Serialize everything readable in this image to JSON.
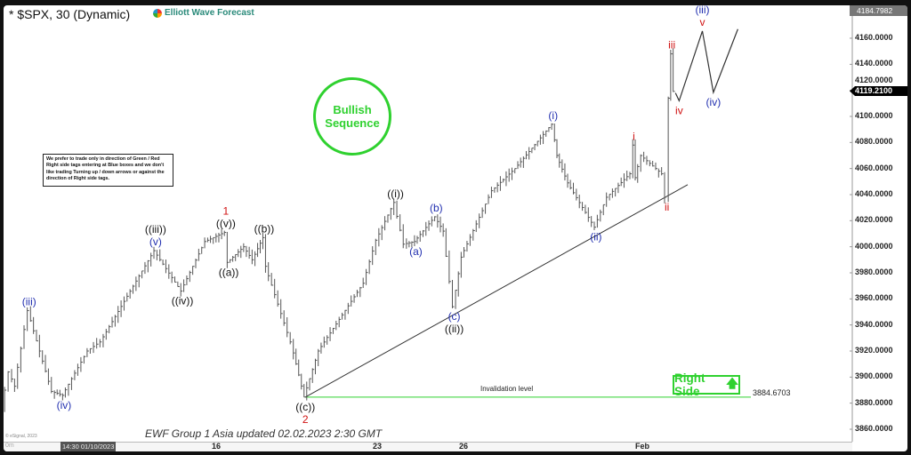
{
  "header": {
    "title": "* $SPX, 30 (Dynamic)",
    "logo_text": "Elliott Wave Forecast"
  },
  "note": "We prefer to trade only in direction of Green / Red Right side tags entering at Blue boxes and we don't like trading Turning up / down arrows or against the direction of Right side tags.",
  "badge": {
    "line1": "Bullish",
    "line2": "Sequence",
    "color": "#2fd12f"
  },
  "right_side": {
    "label": "Right Side",
    "arrow": "arrow-up"
  },
  "footer": "EWF Group 1 Asia updated 02.02.2023 2:30 GMT",
  "copyright": "© eSignal, 2023",
  "interval_label": "0m",
  "chart_data": {
    "type": "ohlc",
    "title": "* $SPX, 30 (Dynamic)",
    "ylim": [
      3850,
      4184.7982
    ],
    "y_ticks": [
      "4160.0000",
      "4140.0000",
      "4120.0000",
      "4100.0000",
      "4080.0000",
      "4060.0000",
      "4040.0000",
      "4020.0000",
      "4000.0000",
      "3980.0000",
      "3960.0000",
      "3940.0000",
      "3920.0000",
      "3900.0000",
      "3880.0000",
      "3860.0000"
    ],
    "y_tick_values": [
      4160,
      4140,
      4120,
      4100,
      4080,
      4060,
      4040,
      4020,
      4000,
      3980,
      3960,
      3940,
      3920,
      3900,
      3880,
      3860
    ],
    "x_ticks": [
      "16",
      "23",
      "26",
      "Feb"
    ],
    "x_tick_dates": [
      "01/16 00:00",
      "01/23 00:00",
      "01/26 00:00",
      "02/01 00:00"
    ],
    "cursor_time": "14:30 01/10/2023",
    "last_price": "4119.2100",
    "top_price": "4184.7982",
    "price_swings": [
      [
        "01/07 03:00",
        3876
      ],
      [
        "01/07 10:00",
        3904
      ],
      [
        "01/07 16:00",
        3893
      ],
      [
        "01/08 05:00",
        3951
      ],
      [
        "01/09 05:00",
        3889
      ],
      [
        "01/09 16:00",
        3886
      ],
      [
        "01/10 17:00",
        3920
      ],
      [
        "01/11 06:00",
        3927
      ],
      [
        "01/13 12:00",
        3997
      ],
      [
        "01/14 15:00",
        3966
      ],
      [
        "01/15 15:00",
        4004
      ],
      [
        "01/16 11:00",
        4011
      ],
      [
        "01/16 14:00",
        3988
      ],
      [
        "01/17 07:00",
        4000
      ],
      [
        "01/17 16:00",
        3990
      ],
      [
        "01/18 03:00",
        4007
      ],
      [
        "01/18 06:00",
        3985
      ],
      [
        "01/19 08:00",
        3927
      ],
      [
        "01/19 22:00",
        3884.67
      ],
      [
        "01/20 13:00",
        3920
      ],
      [
        "01/22 12:00",
        3972
      ],
      [
        "01/23 01:00",
        4005
      ],
      [
        "01/23 16:00",
        4034
      ],
      [
        "01/24 00:00",
        4002
      ],
      [
        "01/24 09:00",
        4004
      ],
      [
        "01/25 02:00",
        4023
      ],
      [
        "01/25 09:00",
        4012
      ],
      [
        "01/25 17:00",
        3954
      ],
      [
        "01/26 00:00",
        3992
      ],
      [
        "01/27 01:00",
        4043
      ],
      [
        "01/27 20:00",
        4060
      ],
      [
        "01/29 02:00",
        4094
      ],
      [
        "01/29 06:00",
        4070
      ],
      [
        "01/29 15:00",
        4049
      ],
      [
        "01/30 13:00",
        4015
      ],
      [
        "01/30 23:00",
        4038
      ],
      [
        "01/31 18:00",
        4056
      ],
      [
        "01/31 20:00",
        4078
      ],
      [
        "01/31 22:00",
        4053
      ],
      [
        "02/01 03:00",
        4070
      ],
      [
        "02/01 20:00",
        4056
      ],
      [
        "02/01 23:00",
        4038
      ],
      [
        "02/02 01:00",
        4114
      ],
      [
        "02/02 03:00",
        4148
      ],
      [
        "02/02 06:00",
        4119.21
      ]
    ],
    "projection": [
      [
        "02/02 06:00",
        4118
      ],
      [
        "02/02 09:00",
        4112
      ],
      [
        "02/03 04:00",
        4165.5
      ],
      [
        "02/03 13:00",
        4118.4
      ],
      [
        "02/04 09:00",
        4167
      ]
    ],
    "trendline": [
      [
        "01/19 22:00",
        3884.67
      ],
      [
        "02/02 16:00",
        4047.6
      ]
    ],
    "invalidation": {
      "label": "Invalidation level",
      "value": "3884.6703",
      "price": 3884.6703,
      "from": "01/19 22:00",
      "to": "02/05 04:00",
      "color": "#2fd12f"
    },
    "wave_labels": [
      {
        "at": "01/08 05:00",
        "price": 3951,
        "pos": "above",
        "lines": [
          {
            "text": "(iii)",
            "color": "#2230b0"
          }
        ]
      },
      {
        "at": "01/09 16:00",
        "price": 3886,
        "pos": "below",
        "lines": [
          {
            "text": "(iv)",
            "color": "#2230b0"
          }
        ]
      },
      {
        "at": "01/13 12:00",
        "price": 3997,
        "pos": "above",
        "lines": [
          {
            "text": "((iii))",
            "color": "#111"
          },
          {
            "text": "(v)",
            "color": "#2230b0"
          }
        ]
      },
      {
        "at": "01/14 15:00",
        "price": 3966,
        "pos": "below",
        "lines": [
          {
            "text": "((iv))",
            "color": "#111"
          }
        ]
      },
      {
        "at": "01/16 11:00",
        "price": 4011,
        "pos": "above",
        "lines": [
          {
            "text": "1",
            "color": "#d01010"
          },
          {
            "text": "((v))",
            "color": "#111"
          }
        ]
      },
      {
        "at": "01/16 14:00",
        "price": 3988,
        "pos": "below",
        "lines": [
          {
            "text": "((a))",
            "color": "#111"
          }
        ]
      },
      {
        "at": "01/18 03:00",
        "price": 4007,
        "pos": "above",
        "lines": [
          {
            "text": "((b))",
            "color": "#111"
          }
        ]
      },
      {
        "at": "01/19 22:00",
        "price": 3884.67,
        "pos": "below",
        "lines": [
          {
            "text": "((c))",
            "color": "#111"
          },
          {
            "text": "2",
            "color": "#d01010"
          }
        ]
      },
      {
        "at": "01/23 16:00",
        "price": 4034,
        "pos": "above",
        "lines": [
          {
            "text": "((i))",
            "color": "#111"
          }
        ]
      },
      {
        "at": "01/24 09:00",
        "price": 4004,
        "pos": "below",
        "lines": [
          {
            "text": "(a)",
            "color": "#2230b0"
          }
        ]
      },
      {
        "at": "01/25 02:00",
        "price": 4023,
        "pos": "above",
        "lines": [
          {
            "text": "(b)",
            "color": "#2230b0"
          }
        ]
      },
      {
        "at": "01/25 17:00",
        "price": 3954,
        "pos": "below",
        "lines": [
          {
            "text": "(c)",
            "color": "#2230b0"
          },
          {
            "text": "((ii))",
            "color": "#111"
          }
        ]
      },
      {
        "at": "01/29 02:00",
        "price": 4094,
        "pos": "above",
        "lines": [
          {
            "text": "(i)",
            "color": "#2230b0"
          }
        ]
      },
      {
        "at": "01/30 13:00",
        "price": 4015,
        "pos": "below",
        "lines": [
          {
            "text": "(ii)",
            "color": "#2230b0"
          }
        ]
      },
      {
        "at": "01/31 20:00",
        "price": 4078,
        "pos": "above",
        "lines": [
          {
            "text": "i",
            "color": "#d01010"
          }
        ]
      },
      {
        "at": "02/01 23:00",
        "price": 4038,
        "pos": "below",
        "lines": [
          {
            "text": "ii",
            "color": "#d01010"
          }
        ]
      },
      {
        "at": "02/02 03:00",
        "price": 4148,
        "pos": "above",
        "lines": [
          {
            "text": "iii",
            "color": "#d01010"
          }
        ]
      },
      {
        "at": "02/02 09:00",
        "price": 4112,
        "pos": "below",
        "lines": [
          {
            "text": "iv",
            "color": "#d01010"
          }
        ]
      },
      {
        "at": "02/03 04:00",
        "price": 4165.5,
        "pos": "above",
        "lines": [
          {
            "text": "(iii)",
            "color": "#2230b0"
          },
          {
            "text": "v",
            "color": "#d01010"
          }
        ]
      },
      {
        "at": "02/03 13:00",
        "price": 4118.4,
        "pos": "below",
        "lines": [
          {
            "text": "(iv)",
            "color": "#2230b0"
          }
        ]
      }
    ]
  }
}
